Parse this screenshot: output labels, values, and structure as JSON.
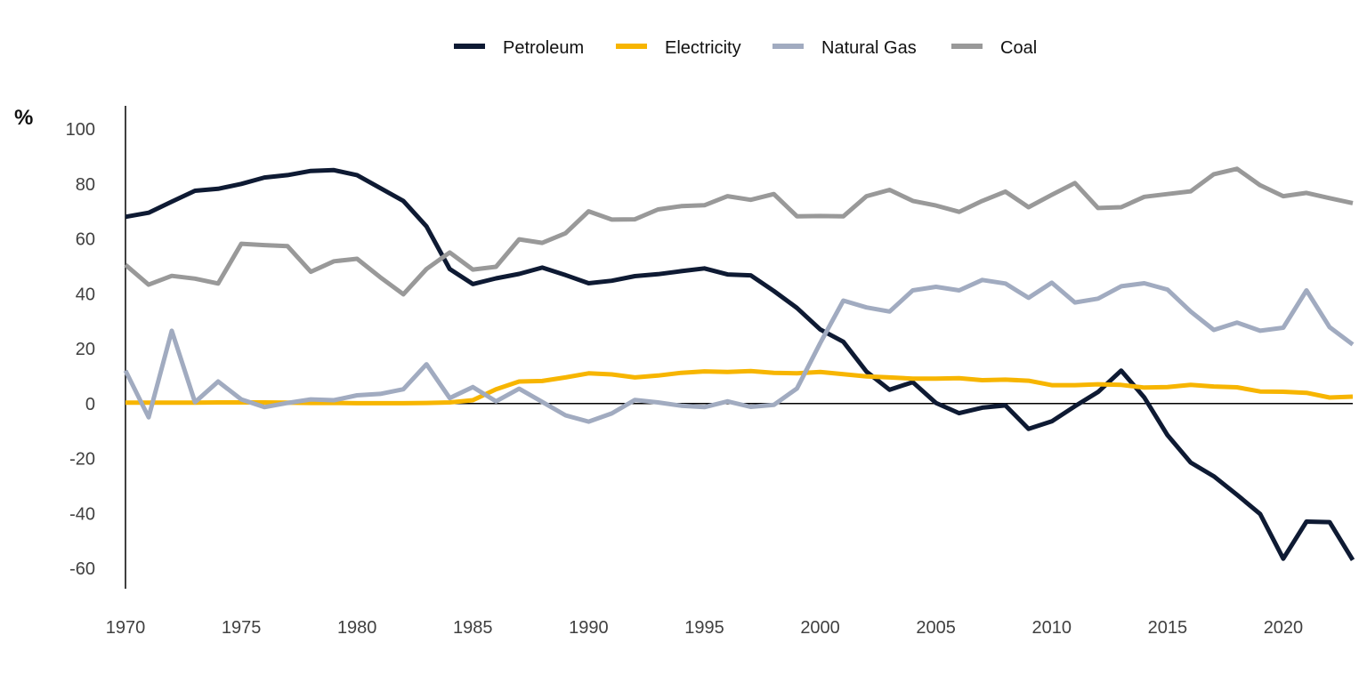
{
  "chart_data": {
    "type": "line",
    "title": "",
    "xlabel": "",
    "ylabel": "%",
    "xlim": [
      1970,
      2023
    ],
    "ylim": [
      -70,
      110
    ],
    "x_ticks": [
      1970,
      1975,
      1980,
      1985,
      1990,
      1995,
      2000,
      2005,
      2010,
      2015,
      2020
    ],
    "y_ticks": [
      -60,
      -40,
      -20,
      0,
      20,
      40,
      60,
      80,
      100
    ],
    "grid": false,
    "legend_position": "top-center",
    "x": [
      1970,
      1971,
      1972,
      1973,
      1974,
      1975,
      1976,
      1977,
      1978,
      1979,
      1980,
      1981,
      1982,
      1983,
      1984,
      1985,
      1986,
      1987,
      1988,
      1989,
      1990,
      1991,
      1992,
      1993,
      1994,
      1995,
      1996,
      1997,
      1998,
      1999,
      2000,
      2001,
      2002,
      2003,
      2004,
      2005,
      2006,
      2007,
      2008,
      2009,
      2010,
      2011,
      2012,
      2013,
      2014,
      2015,
      2016,
      2017,
      2018,
      2019,
      2020,
      2021,
      2022,
      2023
    ],
    "series": [
      {
        "name": "Petroleum",
        "color": "#0e1a33",
        "values": [
          68,
          69.5,
          73.5,
          77.5,
          78.2,
          80,
          82.3,
          83.2,
          84.7,
          85,
          83.2,
          78.5,
          73.8,
          64.5,
          49,
          43.5,
          45.6,
          47.2,
          49.5,
          46.8,
          43.8,
          44.7,
          46.4,
          47.1,
          48.2,
          49.2,
          47,
          46.7,
          41,
          34.8,
          27,
          22.5,
          11.6,
          5,
          7.8,
          0.2,
          -3.5,
          -1.5,
          -0.7,
          -9.2,
          -6.5,
          -1,
          4.2,
          12,
          2.2,
          -11.5,
          -21.5,
          -26.5,
          -33.2,
          -40.2,
          -56.5,
          -43,
          -43.2,
          -57
        ]
      },
      {
        "name": "Electricity",
        "color": "#f7b500",
        "values": [
          0.3,
          0.3,
          0.3,
          0.3,
          0.4,
          0.4,
          0.4,
          0.3,
          0.2,
          0.2,
          0.1,
          0.1,
          0.1,
          0.2,
          0.4,
          1.2,
          5.2,
          8,
          8.2,
          9.5,
          11,
          10.6,
          9.5,
          10.2,
          11.2,
          11.7,
          11.5,
          11.8,
          11.2,
          11,
          11.5,
          10.7,
          9.9,
          9.5,
          9.1,
          9.1,
          9.2,
          8.5,
          8.7,
          8.3,
          6.7,
          6.7,
          7,
          6.8,
          5.8,
          6,
          6.8,
          6.2,
          5.9,
          4.4,
          4.3,
          3.9,
          2.2,
          2.5
        ]
      },
      {
        "name": "Natural Gas",
        "color": "#a1abc0",
        "values": [
          12,
          -5,
          26.5,
          0.5,
          8,
          1.5,
          -1.3,
          0.2,
          1.5,
          1.2,
          3,
          3.5,
          5.2,
          14.3,
          2,
          6,
          0.8,
          5.4,
          0.6,
          -4.3,
          -6.6,
          -3.6,
          1.3,
          0.4,
          -0.8,
          -1.3,
          0.8,
          -1.2,
          -0.5,
          5.5,
          22,
          37.5,
          35,
          33.5,
          41.2,
          42.5,
          41.2,
          45,
          43.7,
          38.5,
          44,
          36.8,
          38.2,
          42.7,
          43.8,
          41.5,
          33.5,
          26.8,
          29.5,
          26.5,
          27.6,
          41.2,
          27.8,
          21.5
        ]
      },
      {
        "name": "Coal",
        "color": "#999999",
        "values": [
          50.5,
          43.3,
          46.5,
          45.5,
          43.7,
          58.2,
          57.7,
          57.3,
          48,
          51.8,
          52.7,
          46,
          39.8,
          49,
          55,
          48.8,
          49.8,
          59.8,
          58.5,
          62,
          70,
          67,
          67.1,
          70.7,
          71.9,
          72.2,
          75.5,
          74.2,
          76.3,
          68.2,
          68.3,
          68.2,
          75.5,
          77.8,
          73.8,
          72.1,
          69.8,
          73.8,
          77.2,
          71.5,
          76,
          80.3,
          71.2,
          71.5,
          75.3,
          76.3,
          77.3,
          83.5,
          85.5,
          79.5,
          75.5,
          76.7,
          74.8,
          73
        ]
      }
    ]
  }
}
